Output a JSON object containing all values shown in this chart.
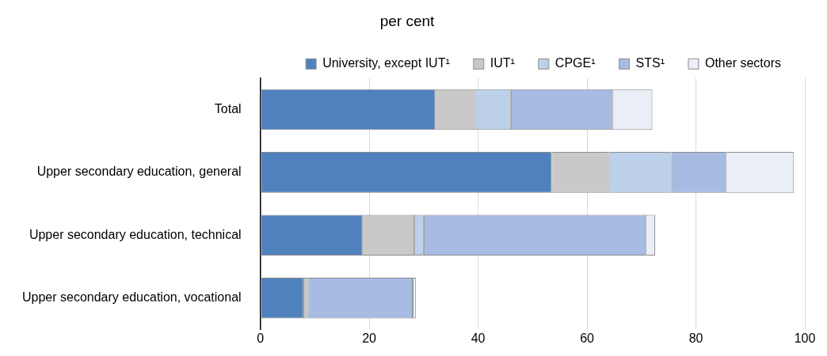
{
  "chart_data": {
    "type": "bar",
    "orientation": "horizontal",
    "stacked": true,
    "title": "per cent",
    "categories": [
      "Total",
      "Upper secondary education, general",
      "Upper secondary education, technical",
      "Upper secondary education, vocational"
    ],
    "series": [
      {
        "name": "University, except IUT¹",
        "color": "#4f81bd",
        "values": [
          32.1,
          53.5,
          18.7,
          7.9
        ]
      },
      {
        "name": "IUT¹",
        "color": "#c9c9c9",
        "values": [
          7.3,
          10.5,
          9.6,
          0.8
        ]
      },
      {
        "name": "CPGE¹",
        "color": "#bcd0ea",
        "values": [
          6.6,
          11.5,
          1.7,
          0
        ]
      },
      {
        "name": "STS¹",
        "color": "#a7bbe3",
        "values": [
          18.7,
          10,
          40.8,
          19.3
        ]
      },
      {
        "name": "Other sectors",
        "color": "#eaeef7",
        "values": [
          7.3,
          12.5,
          1.7,
          0.6
        ]
      }
    ],
    "xlim": [
      0,
      100
    ],
    "xticks": [
      0,
      20,
      40,
      60,
      80,
      100
    ],
    "grid": "x",
    "legend": "top"
  }
}
